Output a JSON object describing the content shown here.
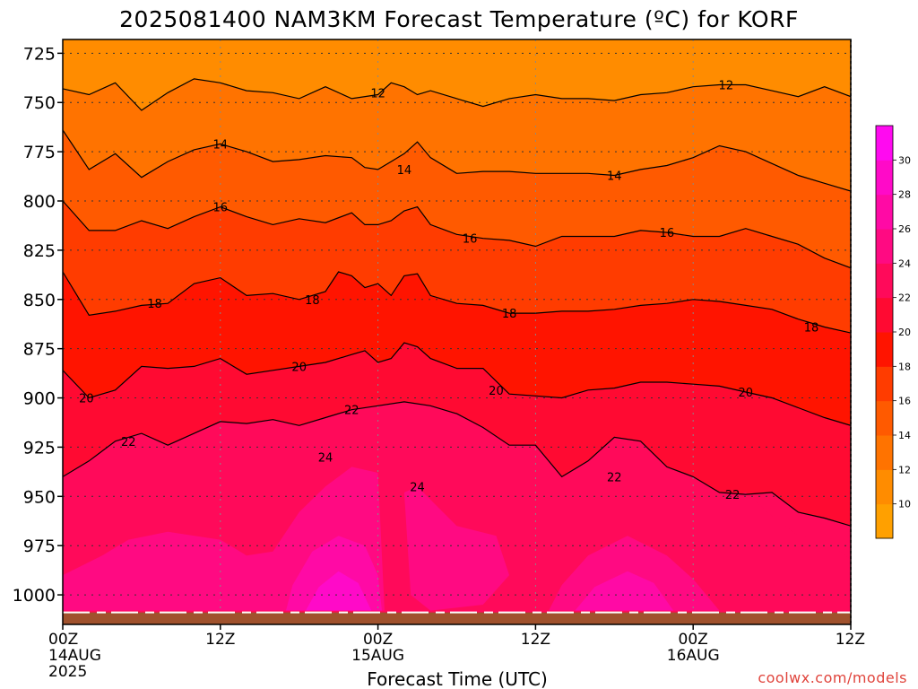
{
  "title": "2025081400 NAM3KM Forecast Temperature (ºC) for KORF",
  "xlabel": "Forecast Time (UTC)",
  "credit": "coolwx.com/models",
  "x_ticks": [
    {
      "hours": 0,
      "l1": "00Z",
      "l2": "14AUG",
      "l3": "2025"
    },
    {
      "hours": 12,
      "l1": "12Z",
      "l2": "",
      "l3": ""
    },
    {
      "hours": 24,
      "l1": "00Z",
      "l2": "15AUG",
      "l3": ""
    },
    {
      "hours": 36,
      "l1": "12Z",
      "l2": "",
      "l3": ""
    },
    {
      "hours": 48,
      "l1": "00Z",
      "l2": "16AUG",
      "l3": ""
    },
    {
      "hours": 60,
      "l1": "12Z",
      "l2": "",
      "l3": ""
    }
  ],
  "colorbar": {
    "ticks": [
      10,
      12,
      14,
      16,
      18,
      20,
      22,
      24,
      26,
      28,
      30
    ],
    "colors": [
      "#ffa000",
      "#ff8c00",
      "#ff7300",
      "#ff5a00",
      "#ff3c00",
      "#ff1400",
      "#ff0a32",
      "#ff0a5a",
      "#ff0a82",
      "#ff0aa5",
      "#ff0ac8",
      "#ff0af0"
    ]
  },
  "chart_data": {
    "type": "heatmap",
    "title": "2025081400 NAM3KM Forecast Temperature (ºC) for KORF",
    "xlabel": "Forecast Time (UTC)",
    "ylabel": "",
    "xlim_hours": [
      0,
      60
    ],
    "ylim_hpa": [
      1015,
      718
    ],
    "y_ticks": [
      725,
      750,
      775,
      800,
      825,
      850,
      875,
      900,
      925,
      950,
      975,
      1000
    ],
    "grid": true,
    "contour_interval": 2,
    "isotherms": [
      {
        "level": 12,
        "points": [
          [
            0,
            743
          ],
          [
            2,
            746
          ],
          [
            4,
            740
          ],
          [
            6,
            754
          ],
          [
            8,
            745
          ],
          [
            10,
            738
          ],
          [
            12,
            740
          ],
          [
            14,
            744
          ],
          [
            16,
            745
          ],
          [
            18,
            748
          ],
          [
            20,
            742
          ],
          [
            22,
            748
          ],
          [
            24,
            746
          ],
          [
            25,
            740
          ],
          [
            26,
            742
          ],
          [
            27,
            746
          ],
          [
            28,
            744
          ],
          [
            30,
            748
          ],
          [
            32,
            752
          ],
          [
            34,
            748
          ],
          [
            36,
            746
          ],
          [
            38,
            748
          ],
          [
            40,
            748
          ],
          [
            42,
            749
          ],
          [
            44,
            746
          ],
          [
            46,
            745
          ],
          [
            48,
            742
          ],
          [
            50,
            741
          ],
          [
            52,
            741
          ],
          [
            54,
            744
          ],
          [
            56,
            747
          ],
          [
            58,
            742
          ],
          [
            60,
            747
          ]
        ]
      },
      {
        "level": 14,
        "points": [
          [
            0,
            764
          ],
          [
            2,
            784
          ],
          [
            4,
            776
          ],
          [
            6,
            788
          ],
          [
            8,
            780
          ],
          [
            10,
            774
          ],
          [
            12,
            771
          ],
          [
            14,
            775
          ],
          [
            16,
            780
          ],
          [
            18,
            779
          ],
          [
            20,
            777
          ],
          [
            22,
            778
          ],
          [
            23,
            783
          ],
          [
            24,
            784
          ],
          [
            25,
            780
          ],
          [
            26,
            776
          ],
          [
            27,
            770
          ],
          [
            28,
            778
          ],
          [
            30,
            786
          ],
          [
            32,
            785
          ],
          [
            34,
            785
          ],
          [
            36,
            786
          ],
          [
            38,
            786
          ],
          [
            40,
            786
          ],
          [
            42,
            787
          ],
          [
            44,
            784
          ],
          [
            46,
            782
          ],
          [
            48,
            778
          ],
          [
            50,
            772
          ],
          [
            52,
            775
          ],
          [
            54,
            781
          ],
          [
            56,
            787
          ],
          [
            58,
            791
          ],
          [
            60,
            795
          ]
        ]
      },
      {
        "level": 16,
        "points": [
          [
            0,
            800
          ],
          [
            2,
            815
          ],
          [
            4,
            815
          ],
          [
            6,
            810
          ],
          [
            8,
            814
          ],
          [
            10,
            808
          ],
          [
            12,
            803
          ],
          [
            14,
            808
          ],
          [
            16,
            812
          ],
          [
            18,
            809
          ],
          [
            20,
            811
          ],
          [
            22,
            806
          ],
          [
            23,
            812
          ],
          [
            24,
            812
          ],
          [
            25,
            810
          ],
          [
            26,
            805
          ],
          [
            27,
            803
          ],
          [
            28,
            812
          ],
          [
            30,
            817
          ],
          [
            32,
            819
          ],
          [
            34,
            820
          ],
          [
            36,
            823
          ],
          [
            38,
            818
          ],
          [
            40,
            818
          ],
          [
            42,
            818
          ],
          [
            44,
            815
          ],
          [
            46,
            816
          ],
          [
            48,
            818
          ],
          [
            50,
            818
          ],
          [
            52,
            814
          ],
          [
            54,
            818
          ],
          [
            56,
            822
          ],
          [
            58,
            829
          ],
          [
            60,
            834
          ]
        ]
      },
      {
        "level": 18,
        "points": [
          [
            0,
            836
          ],
          [
            2,
            858
          ],
          [
            4,
            856
          ],
          [
            6,
            853
          ],
          [
            8,
            852
          ],
          [
            10,
            842
          ],
          [
            12,
            839
          ],
          [
            14,
            848
          ],
          [
            16,
            847
          ],
          [
            18,
            850
          ],
          [
            20,
            846
          ],
          [
            21,
            836
          ],
          [
            22,
            838
          ],
          [
            23,
            844
          ],
          [
            24,
            842
          ],
          [
            25,
            848
          ],
          [
            26,
            838
          ],
          [
            27,
            837
          ],
          [
            28,
            848
          ],
          [
            30,
            852
          ],
          [
            32,
            853
          ],
          [
            34,
            857
          ],
          [
            36,
            857
          ],
          [
            38,
            856
          ],
          [
            40,
            856
          ],
          [
            42,
            855
          ],
          [
            44,
            853
          ],
          [
            46,
            852
          ],
          [
            48,
            850
          ],
          [
            50,
            851
          ],
          [
            52,
            853
          ],
          [
            54,
            855
          ],
          [
            56,
            860
          ],
          [
            58,
            864
          ],
          [
            60,
            867
          ]
        ]
      },
      {
        "level": 20,
        "points": [
          [
            0,
            886
          ],
          [
            2,
            900
          ],
          [
            4,
            896
          ],
          [
            6,
            884
          ],
          [
            8,
            885
          ],
          [
            10,
            884
          ],
          [
            12,
            880
          ],
          [
            14,
            888
          ],
          [
            16,
            886
          ],
          [
            18,
            884
          ],
          [
            20,
            882
          ],
          [
            22,
            878
          ],
          [
            23,
            876
          ],
          [
            24,
            882
          ],
          [
            25,
            880
          ],
          [
            26,
            872
          ],
          [
            27,
            874
          ],
          [
            28,
            880
          ],
          [
            30,
            885
          ],
          [
            32,
            885
          ],
          [
            34,
            898
          ],
          [
            36,
            899
          ],
          [
            38,
            900
          ],
          [
            40,
            896
          ],
          [
            42,
            895
          ],
          [
            44,
            892
          ],
          [
            46,
            892
          ],
          [
            48,
            893
          ],
          [
            50,
            894
          ],
          [
            52,
            897
          ],
          [
            54,
            900
          ],
          [
            56,
            905
          ],
          [
            58,
            910
          ],
          [
            60,
            914
          ]
        ]
      },
      {
        "level": 22,
        "points": [
          [
            0,
            940
          ],
          [
            2,
            932
          ],
          [
            4,
            922
          ],
          [
            6,
            918
          ],
          [
            8,
            924
          ],
          [
            10,
            918
          ],
          [
            12,
            912
          ],
          [
            14,
            913
          ],
          [
            16,
            911
          ],
          [
            18,
            914
          ],
          [
            20,
            910
          ],
          [
            22,
            906
          ],
          [
            24,
            904
          ],
          [
            26,
            902
          ],
          [
            28,
            904
          ],
          [
            30,
            908
          ],
          [
            32,
            915
          ],
          [
            34,
            924
          ],
          [
            36,
            924
          ],
          [
            38,
            940
          ],
          [
            40,
            932
          ],
          [
            42,
            920
          ],
          [
            44,
            922
          ],
          [
            46,
            935
          ],
          [
            48,
            940
          ],
          [
            50,
            948
          ],
          [
            52,
            949
          ],
          [
            54,
            948
          ],
          [
            56,
            958
          ],
          [
            58,
            961
          ],
          [
            60,
            965
          ]
        ]
      }
    ],
    "contours_near_surface": [
      24,
      26,
      28,
      30
    ],
    "max_value_c": 31,
    "surface_pressure_hpa": 1008
  }
}
